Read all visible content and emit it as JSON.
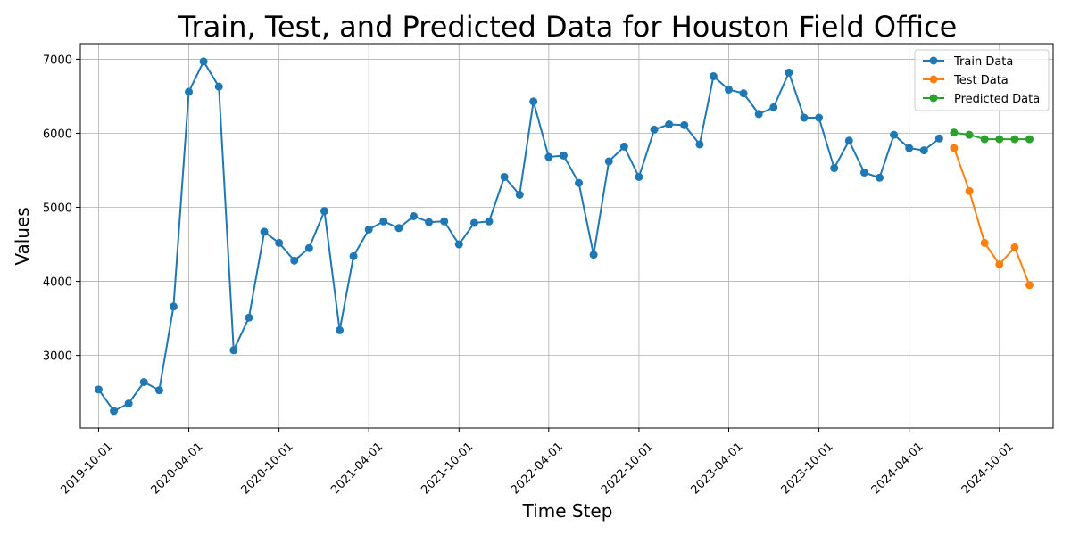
{
  "chart_data": {
    "type": "line",
    "title": "Train, Test, and Predicted Data for Houston Field Office",
    "xlabel": "Time Step",
    "ylabel": "Values",
    "xlim": [
      "2019-08-25",
      "2025-01-18"
    ],
    "ylim": [
      2020,
      7210
    ],
    "x_ticks": [
      "2019-10-01",
      "2020-04-01",
      "2020-10-01",
      "2021-04-01",
      "2021-10-01",
      "2022-04-01",
      "2022-10-01",
      "2023-04-01",
      "2023-10-01",
      "2024-04-01",
      "2024-10-01"
    ],
    "y_ticks": [
      3000,
      4000,
      5000,
      6000,
      7000
    ],
    "grid": true,
    "legend_position": "upper right",
    "series": [
      {
        "name": "Train Data",
        "color": "#1f77b4",
        "x": [
          "2019-10-01",
          "2019-11-01",
          "2019-12-01",
          "2020-01-01",
          "2020-02-01",
          "2020-03-01",
          "2020-04-01",
          "2020-05-01",
          "2020-06-01",
          "2020-07-01",
          "2020-08-01",
          "2020-09-01",
          "2020-10-01",
          "2020-11-01",
          "2020-12-01",
          "2021-01-01",
          "2021-02-01",
          "2021-03-01",
          "2021-04-01",
          "2021-05-01",
          "2021-06-01",
          "2021-07-01",
          "2021-08-01",
          "2021-09-01",
          "2021-10-01",
          "2021-11-01",
          "2021-12-01",
          "2022-01-01",
          "2022-02-01",
          "2022-03-01",
          "2022-04-01",
          "2022-05-01",
          "2022-06-01",
          "2022-07-01",
          "2022-08-01",
          "2022-09-01",
          "2022-10-01",
          "2022-11-01",
          "2022-12-01",
          "2023-01-01",
          "2023-02-01",
          "2023-03-01",
          "2023-04-01",
          "2023-05-01",
          "2023-06-01",
          "2023-07-01",
          "2023-08-01",
          "2023-09-01",
          "2023-10-01",
          "2023-11-01",
          "2023-12-01",
          "2024-01-01",
          "2024-02-01",
          "2024-03-01",
          "2024-04-01",
          "2024-05-01",
          "2024-06-01"
        ],
        "values": [
          2540,
          2250,
          2350,
          2640,
          2530,
          3660,
          6560,
          6970,
          6630,
          3070,
          3510,
          4670,
          4520,
          4280,
          4450,
          4950,
          3340,
          4340,
          4700,
          4810,
          4720,
          4880,
          4800,
          4810,
          4500,
          4790,
          4810,
          5410,
          5170,
          6430,
          5680,
          5700,
          5330,
          4360,
          5620,
          5820,
          5410,
          6050,
          6120,
          6110,
          5850,
          6770,
          6590,
          6540,
          6260,
          6350,
          6820,
          6210,
          6210,
          5530,
          5900,
          5470,
          5400,
          5980,
          5800,
          5770,
          5930
        ]
      },
      {
        "name": "Test Data",
        "color": "#ff7f0e",
        "x": [
          "2024-07-01",
          "2024-08-01",
          "2024-09-01",
          "2024-10-01",
          "2024-11-01",
          "2024-12-01"
        ],
        "values": [
          5800,
          5220,
          4520,
          4230,
          4460,
          3950
        ]
      },
      {
        "name": "Predicted Data",
        "color": "#2ca02c",
        "x": [
          "2024-07-01",
          "2024-08-01",
          "2024-09-01",
          "2024-10-01",
          "2024-11-01",
          "2024-12-01"
        ],
        "values": [
          6010,
          5980,
          5920,
          5920,
          5920,
          5920
        ]
      }
    ]
  }
}
